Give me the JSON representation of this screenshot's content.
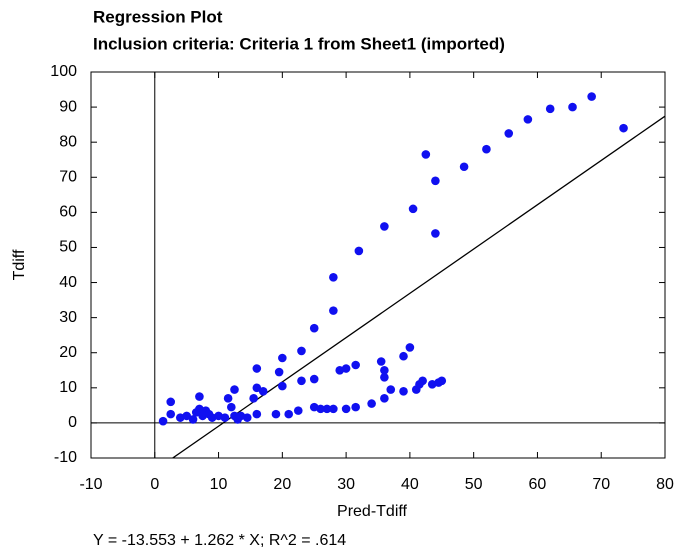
{
  "chart_data": {
    "type": "scatter",
    "title": "Regression Plot",
    "subtitle": "Inclusion criteria: Criteria 1 from Sheet1 (imported)",
    "xlabel": "Pred-Tdiff",
    "ylabel": "Tdiff",
    "footer": "Y = -13.553 + 1.262 * X; R^2 = .614",
    "color": "#1010f0",
    "x": [
      1.3,
      2.5,
      2.5,
      4,
      5,
      6,
      6.5,
      7,
      7,
      7.5,
      8,
      8.5,
      9,
      10,
      11,
      11.5,
      12,
      12.5,
      12.5,
      13,
      13.5,
      14.5,
      15.5,
      16,
      16,
      16,
      17,
      19,
      19.5,
      20,
      20,
      21,
      22.5,
      23,
      23,
      25,
      25,
      25,
      26,
      27,
      28,
      28,
      28,
      29,
      30,
      30,
      31.5,
      31.5,
      32,
      34,
      35.5,
      36,
      36,
      36,
      36,
      37,
      39,
      39,
      40,
      40.5,
      41,
      41.5,
      42,
      42.5,
      43.5,
      44,
      44,
      44.5,
      45,
      48.5,
      52,
      55.5,
      58.5,
      62,
      65.5,
      68.5,
      73.5
    ],
    "values": [
      0.5,
      6,
      2.5,
      1.5,
      2,
      1,
      3,
      4,
      7.5,
      2,
      3.5,
      2.5,
      1.5,
      2,
      1.5,
      7,
      4.5,
      9.5,
      2,
      1,
      2,
      1.5,
      7,
      15.5,
      10,
      2.5,
      9,
      2.5,
      14.5,
      10.5,
      18.5,
      2.5,
      3.5,
      12,
      20.5,
      12.5,
      27,
      4.5,
      4,
      4,
      4,
      32,
      41.5,
      15,
      15.5,
      4,
      4.5,
      16.5,
      49,
      5.5,
      17.5,
      15,
      13,
      56,
      7,
      9.5,
      9,
      19,
      21.5,
      61,
      9.5,
      11,
      12,
      76.5,
      11,
      69,
      54,
      11.5,
      12,
      73,
      78,
      82.5,
      86.5,
      89.5,
      90,
      93,
      84
    ],
    "fit": {
      "intercept": -13.553,
      "slope": 1.262
    },
    "xlim": [
      -10,
      80
    ],
    "xticks": [
      -10,
      0,
      10,
      20,
      30,
      40,
      50,
      60,
      70,
      80
    ],
    "ylim": [
      -10,
      100
    ],
    "yticks": [
      -10,
      0,
      10,
      20,
      30,
      40,
      50,
      60,
      70,
      80,
      90,
      100
    ],
    "zero_lines": true
  }
}
